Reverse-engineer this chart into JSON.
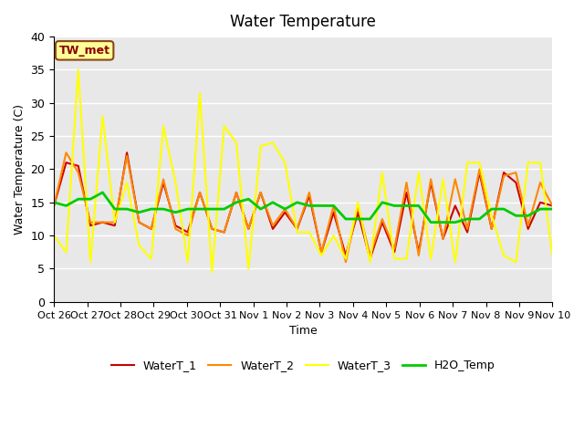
{
  "title": "Water Temperature",
  "xlabel": "Time",
  "ylabel": "Water Temperature (C)",
  "ylim": [
    0,
    40
  ],
  "yticks": [
    0,
    5,
    10,
    15,
    20,
    25,
    30,
    35,
    40
  ],
  "bg_color": "#e8e8e8",
  "annotation_text": "TW_met",
  "annotation_color": "#8b0000",
  "annotation_bg": "#ffff99",
  "annotation_border": "#8b4513",
  "series_colors": {
    "WaterT_1": "#cc0000",
    "WaterT_2": "#ff8800",
    "WaterT_3": "#ffff00",
    "H2O_Temp": "#00cc00"
  },
  "series_linewidths": {
    "WaterT_1": 1.5,
    "WaterT_2": 1.5,
    "WaterT_3": 1.5,
    "H2O_Temp": 2.0
  },
  "x_tick_labels": [
    "Oct 26",
    "Oct 27",
    "Oct 28",
    "Oct 29",
    "Oct 30",
    "Oct 31",
    "Nov 1",
    "Nov 2",
    "Nov 3",
    "Nov 4",
    "Nov 5",
    "Nov 6",
    "Nov 7",
    "Nov 8",
    "Nov 9",
    "Nov 10"
  ],
  "x_tick_positions": [
    0,
    1,
    2,
    3,
    4,
    5,
    6,
    7,
    8,
    9,
    10,
    11,
    12,
    13,
    14,
    15
  ],
  "WaterT_1": [
    14.5,
    21.0,
    20.5,
    11.5,
    12.0,
    11.5,
    22.5,
    12.0,
    11.0,
    18.0,
    11.5,
    10.5,
    16.5,
    11.0,
    10.5,
    16.5,
    11.0,
    16.5,
    11.0,
    13.5,
    11.0,
    16.0,
    7.5,
    13.5,
    7.0,
    13.5,
    6.5,
    12.0,
    7.5,
    16.5,
    7.5,
    18.0,
    9.5,
    14.5,
    10.5,
    19.5,
    11.0,
    19.5,
    18.0,
    11.0,
    15.0,
    14.5
  ],
  "WaterT_2": [
    14.5,
    22.5,
    19.5,
    12.0,
    12.0,
    12.0,
    22.0,
    12.0,
    11.0,
    18.5,
    11.0,
    10.0,
    16.5,
    11.0,
    10.5,
    16.5,
    11.0,
    16.5,
    11.5,
    14.0,
    11.0,
    16.5,
    7.5,
    14.5,
    6.0,
    14.5,
    7.0,
    12.5,
    8.0,
    18.0,
    7.0,
    18.5,
    9.5,
    18.5,
    11.0,
    20.0,
    11.0,
    19.0,
    19.5,
    11.5,
    18.0,
    14.5
  ],
  "WaterT_3": [
    10.0,
    7.5,
    35.0,
    6.0,
    28.0,
    12.0,
    18.0,
    8.5,
    6.5,
    26.5,
    18.0,
    6.0,
    31.5,
    4.5,
    26.5,
    24.0,
    5.0,
    23.5,
    24.0,
    21.0,
    10.5,
    10.5,
    7.0,
    10.0,
    6.5,
    15.0,
    6.0,
    19.5,
    6.5,
    6.5,
    19.5,
    6.5,
    18.5,
    6.0,
    21.0,
    21.0,
    13.0,
    7.0,
    6.0,
    21.0,
    21.0,
    7.0
  ],
  "H2O_Temp": [
    15.0,
    14.5,
    15.5,
    15.5,
    16.5,
    14.0,
    14.0,
    13.5,
    14.0,
    14.0,
    13.5,
    14.0,
    14.0,
    14.0,
    14.0,
    15.0,
    15.5,
    14.0,
    15.0,
    14.0,
    15.0,
    14.5,
    14.5,
    14.5,
    12.5,
    12.5,
    12.5,
    15.0,
    14.5,
    14.5,
    14.5,
    12.0,
    12.0,
    12.0,
    12.5,
    12.5,
    14.0,
    14.0,
    13.0,
    13.0,
    14.0,
    14.0
  ],
  "n_points": 42
}
